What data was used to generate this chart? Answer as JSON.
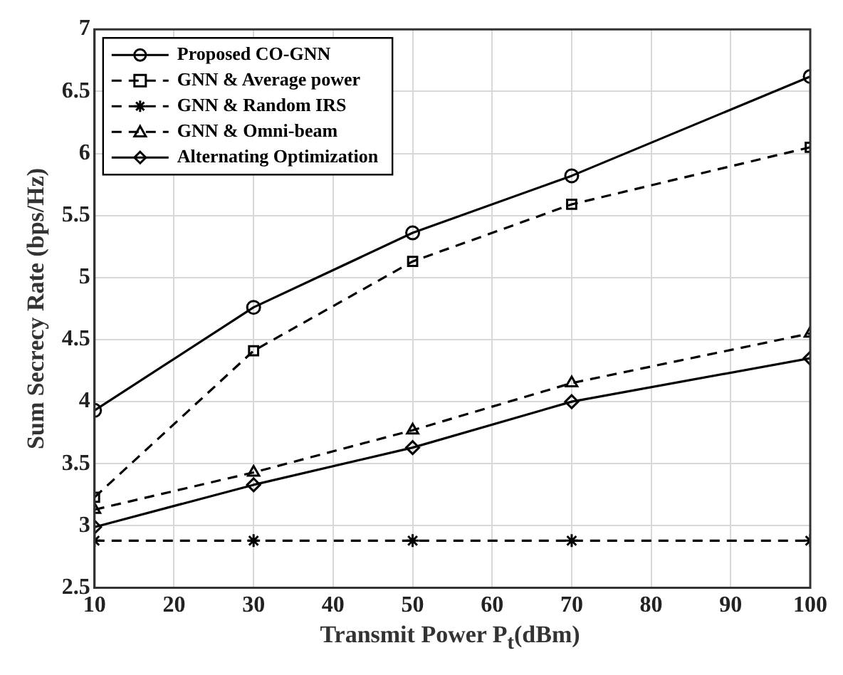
{
  "chart_data": {
    "type": "line",
    "xlabel": "Transmit Power P$_{t}$(dBm)",
    "ylabel": "Sum Secrecy Rate (bps/Hz)",
    "x": [
      10,
      30,
      50,
      70,
      100
    ],
    "series": [
      {
        "name": "Proposed CO-GNN",
        "color": "#000000",
        "marker": "circle",
        "line_style": "solid",
        "values": [
          3.93,
          4.76,
          5.36,
          5.82,
          6.62
        ]
      },
      {
        "name": "GNN & Average power",
        "color": "#000000",
        "marker": "square",
        "line_style": "dashed",
        "values": [
          3.23,
          4.41,
          5.13,
          5.59,
          6.05
        ]
      },
      {
        "name": "GNN & Random IRS",
        "color": "#000000",
        "marker": "cross",
        "line_style": "dashed",
        "values": [
          2.88,
          2.88,
          2.88,
          2.88,
          2.88
        ]
      },
      {
        "name": "GNN & Omni-beam",
        "color": "#000000",
        "marker": "triangle",
        "line_style": "dashed",
        "values": [
          3.13,
          3.43,
          3.77,
          4.15,
          4.55
        ]
      },
      {
        "name": "Alternating Optimization",
        "color": "#000000",
        "marker": "diamond",
        "line_style": "solid",
        "values": [
          2.99,
          3.33,
          3.63,
          4.0,
          4.35
        ]
      }
    ],
    "xlim": [
      10,
      100
    ],
    "xticks": [
      10,
      20,
      30,
      40,
      50,
      60,
      70,
      80,
      90,
      100
    ],
    "ylim": [
      2.5,
      7
    ],
    "yticks": [
      2.5,
      3,
      3.5,
      4,
      4.5,
      5,
      5.5,
      6,
      6.5,
      7
    ],
    "grid": true,
    "legend": "top left"
  }
}
